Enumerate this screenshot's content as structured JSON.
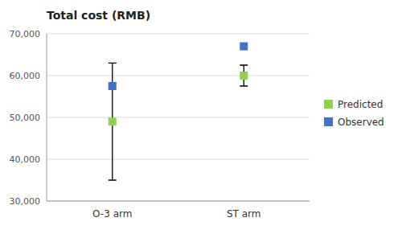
{
  "chart_data": {
    "type": "scatter",
    "title": "Total cost (RMB)",
    "categories": [
      "O-3 arm",
      "ST arm"
    ],
    "series": [
      {
        "name": "Predicted",
        "color": "#92d050",
        "marker": "square",
        "values": [
          49000,
          60000
        ],
        "errors": [
          14000,
          2500
        ]
      },
      {
        "name": "Observed",
        "color": "#4472c4",
        "marker": "square",
        "values": [
          57500,
          67000
        ]
      }
    ],
    "ylim": [
      30000,
      70000
    ],
    "yticks": [
      {
        "value": 30000,
        "label": "30,000"
      },
      {
        "value": 40000,
        "label": "40,000"
      },
      {
        "value": 50000,
        "label": "50,000"
      },
      {
        "value": 60000,
        "label": "60,000"
      },
      {
        "value": 70000,
        "label": "70,000"
      }
    ],
    "grid": true,
    "legend": "right"
  }
}
